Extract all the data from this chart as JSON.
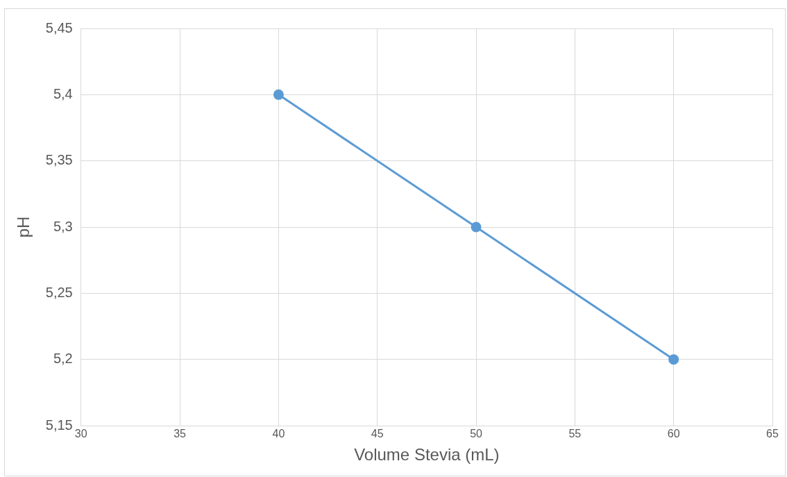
{
  "chart_data": {
    "type": "line",
    "xlabel": "Volume Stevia (mL)",
    "ylabel": "pH",
    "x": [
      40,
      50,
      60
    ],
    "series": [
      {
        "color": "#5b9bd5",
        "values": [
          5.4,
          5.3,
          5.2
        ]
      }
    ],
    "xlim": [
      30,
      65
    ],
    "xticks": [
      30,
      35,
      40,
      45,
      50,
      55,
      60,
      65
    ],
    "ylim": [
      5.15,
      5.45
    ],
    "yticks": [
      {
        "value": 5.15,
        "label": "5,15"
      },
      {
        "value": 5.2,
        "label": "5,2"
      },
      {
        "value": 5.25,
        "label": "5,25"
      },
      {
        "value": 5.3,
        "label": "5,3"
      },
      {
        "value": 5.35,
        "label": "5,35"
      },
      {
        "value": 5.4,
        "label": "5,4"
      },
      {
        "value": 5.45,
        "label": "5,45"
      }
    ],
    "grid": true,
    "legend": false,
    "marker": "circle",
    "line_style": "solid"
  }
}
